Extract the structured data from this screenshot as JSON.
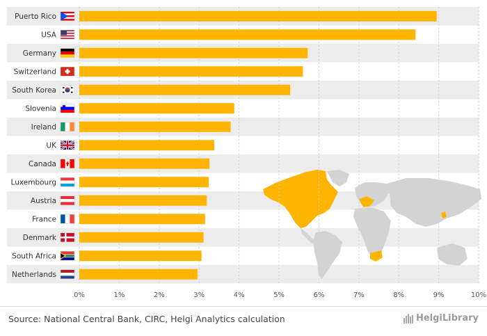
{
  "chart_data": {
    "type": "bar",
    "orientation": "horizontal",
    "categories": [
      "Puerto Rico",
      "USA",
      "Germany",
      "Switzerland",
      "South Korea",
      "Slovenia",
      "Ireland",
      "UK",
      "Canada",
      "Luxembourg",
      "Austria",
      "France",
      "Denmark",
      "South Africa",
      "Netherlands"
    ],
    "values": [
      8.95,
      8.42,
      5.72,
      5.6,
      5.28,
      3.88,
      3.79,
      3.38,
      3.26,
      3.24,
      3.19,
      3.15,
      3.11,
      3.06,
      2.96
    ],
    "xlim": [
      0,
      10
    ],
    "ticks": [
      0,
      1,
      2,
      3,
      4,
      5,
      6,
      7,
      8,
      9,
      10
    ],
    "tick_labels": [
      "0%",
      "1%",
      "2%",
      "3%",
      "4%",
      "5%",
      "6%",
      "7%",
      "8%",
      "9%",
      "10%"
    ],
    "bar_color": "#ffb400",
    "band_color": "#ececec",
    "grid": "vertical dashed",
    "flags": [
      "puerto-rico",
      "usa",
      "germany",
      "switzerland",
      "south-korea",
      "slovenia",
      "ireland",
      "uk",
      "canada",
      "luxembourg",
      "austria",
      "france",
      "denmark",
      "south-africa",
      "netherlands"
    ],
    "map": {
      "highlight_color": "#ffb400",
      "base_color": "#d3d3d3"
    }
  },
  "footer": {
    "source": "Source: National Central Bank, CIRC, Helgi Analytics calculation",
    "brand": "HelgiLibrary"
  }
}
